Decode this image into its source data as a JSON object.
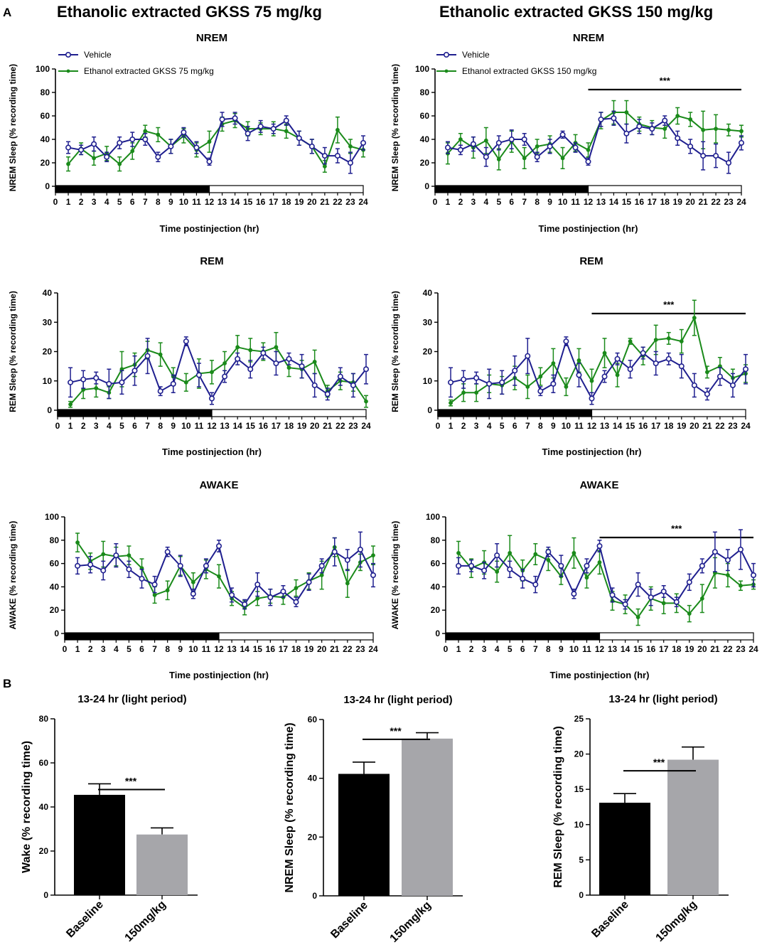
{
  "panel_labels": {
    "a": "A",
    "b": "B"
  },
  "column_titles": {
    "left": "Ethanolic extracted GKSS 75 mg/kg",
    "right": "Ethanolic extracted GKSS 150 mg/kg"
  },
  "colors": {
    "vehicle": "#1f1f8f",
    "treatment": "#1a8a1a",
    "baseline_bar": "#000000",
    "dose_bar": "#a6a6aa",
    "dark_period": "#000000",
    "light_period": "#ffffff"
  },
  "significance": "***",
  "chart_data": [
    {
      "id": "nrem_75",
      "type": "line",
      "title": "NREM",
      "xlabel": "Time postinjection (hr)",
      "ylabel": "NREM Sleep (% recording time)",
      "xlim": [
        0,
        24
      ],
      "ylim": [
        0,
        100
      ],
      "yticks": [
        0,
        20,
        40,
        60,
        80,
        100
      ],
      "x": [
        1,
        2,
        3,
        4,
        5,
        6,
        7,
        8,
        9,
        10,
        11,
        12,
        13,
        14,
        15,
        16,
        17,
        18,
        19,
        20,
        21,
        22,
        23,
        24
      ],
      "legend": [
        "Vehicle",
        "Ethanol extracted GKSS 75 mg/kg"
      ],
      "series": [
        {
          "name": "Vehicle",
          "values": [
            33,
            31,
            36,
            25,
            37,
            40,
            40,
            25,
            34,
            46,
            33,
            21,
            57,
            58,
            45,
            51,
            49,
            56,
            41,
            34,
            26,
            26,
            20,
            37
          ],
          "errors": [
            5,
            4,
            6,
            4,
            5,
            6,
            5,
            4,
            6,
            4,
            5,
            3,
            6,
            5,
            6,
            5,
            4,
            4,
            6,
            6,
            7,
            6,
            9,
            6
          ]
        },
        {
          "name": "Ethanol extracted GKSS 75 mg/kg",
          "values": [
            19,
            32,
            24,
            28,
            19,
            30,
            47,
            44,
            34,
            43,
            31,
            38,
            53,
            56,
            49,
            49,
            49,
            47,
            41,
            34,
            17,
            48,
            34,
            31
          ],
          "errors": [
            6,
            5,
            6,
            6,
            6,
            7,
            5,
            6,
            6,
            6,
            6,
            9,
            6,
            6,
            6,
            5,
            6,
            6,
            6,
            6,
            5,
            11,
            6,
            6
          ]
        }
      ],
      "bars": {
        "dark": [
          0,
          12
        ],
        "light": [
          12,
          24
        ]
      },
      "sig_range": null
    },
    {
      "id": "nrem_150",
      "type": "line",
      "title": "NREM",
      "xlabel": "Time postinjection (hr)",
      "ylabel": "NREM Sleep (% recording time)",
      "xlim": [
        0,
        24
      ],
      "ylim": [
        0,
        100
      ],
      "yticks": [
        0,
        20,
        40,
        60,
        80,
        100
      ],
      "x": [
        1,
        2,
        3,
        4,
        5,
        6,
        7,
        8,
        9,
        10,
        11,
        12,
        13,
        14,
        15,
        16,
        17,
        18,
        19,
        20,
        21,
        22,
        23,
        24
      ],
      "legend": [
        "Vehicle",
        "Ethanol extracted GKSS 150 mg/kg"
      ],
      "series": [
        {
          "name": "Vehicle",
          "values": [
            33,
            31,
            36,
            25,
            37,
            40,
            40,
            25,
            34,
            44,
            33,
            21,
            57,
            58,
            45,
            51,
            49,
            56,
            41,
            34,
            26,
            26,
            20,
            37
          ],
          "errors": [
            5,
            4,
            6,
            8,
            6,
            8,
            5,
            4,
            6,
            3,
            4,
            3,
            6,
            6,
            8,
            6,
            5,
            4,
            6,
            6,
            12,
            10,
            9,
            6
          ]
        },
        {
          "name": "Ethanol extracted GKSS 150 mg/kg",
          "values": [
            28,
            40,
            33,
            39,
            23,
            38,
            24,
            34,
            36,
            24,
            37,
            31,
            56,
            63,
            63,
            53,
            50,
            49,
            60,
            57,
            48,
            49,
            48,
            47
          ],
          "errors": [
            9,
            5,
            9,
            11,
            9,
            9,
            9,
            6,
            7,
            9,
            7,
            6,
            7,
            10,
            10,
            6,
            6,
            8,
            7,
            6,
            16,
            12,
            5,
            5
          ]
        }
      ],
      "bars": {
        "dark": [
          0,
          12
        ],
        "light": [
          12,
          24
        ]
      },
      "sig_range": [
        12,
        24
      ]
    },
    {
      "id": "rem_75",
      "type": "line",
      "title": "REM",
      "xlabel": "Time postinjection (hr)",
      "ylabel": "REM Sleep (% recording time)",
      "xlim": [
        0,
        24
      ],
      "ylim": [
        0,
        40
      ],
      "yticks": [
        0,
        10,
        20,
        30,
        40
      ],
      "x": [
        1,
        2,
        3,
        4,
        5,
        6,
        7,
        8,
        9,
        10,
        11,
        12,
        13,
        14,
        15,
        16,
        17,
        18,
        19,
        20,
        21,
        22,
        23,
        24
      ],
      "legend": null,
      "series": [
        {
          "name": "Vehicle",
          "values": [
            9.5,
            10.5,
            11,
            9,
            9.5,
            13.5,
            18.5,
            6.5,
            9,
            23.5,
            12,
            4,
            11.5,
            17.5,
            14,
            19.5,
            16,
            17.5,
            15,
            8.5,
            5.5,
            11.5,
            8.5,
            14
          ],
          "errors": [
            5,
            3,
            2,
            5,
            4,
            5,
            6,
            1.5,
            3,
            1.5,
            4,
            2,
            2,
            2,
            3,
            2,
            4,
            2,
            4,
            4,
            2,
            3,
            4,
            5
          ]
        },
        {
          "name": "Ethanol extracted GKSS 75 mg/kg",
          "values": [
            2,
            7,
            7.5,
            6,
            14,
            15.5,
            20.5,
            19,
            11.5,
            9.5,
            12.5,
            13,
            16,
            21.5,
            20.5,
            20,
            21.5,
            14.5,
            14,
            16.5,
            6.5,
            10,
            9.5,
            3
          ],
          "errors": [
            1,
            3,
            3,
            2,
            6,
            4,
            3,
            4,
            3,
            3,
            5,
            4,
            4,
            4,
            4,
            3,
            5,
            3,
            3,
            4,
            2,
            3,
            3,
            2
          ]
        }
      ],
      "bars": {
        "dark": [
          0,
          12
        ],
        "light": [
          12,
          24
        ]
      },
      "sig_range": null
    },
    {
      "id": "rem_150",
      "type": "line",
      "title": "REM",
      "xlabel": "Time postinjection (hr)",
      "ylabel": "REM Sleep (% recording time)",
      "xlim": [
        0,
        24
      ],
      "ylim": [
        0,
        40
      ],
      "yticks": [
        0,
        10,
        20,
        30,
        40
      ],
      "x": [
        1,
        2,
        3,
        4,
        5,
        6,
        7,
        8,
        9,
        10,
        11,
        12,
        13,
        14,
        15,
        16,
        17,
        18,
        19,
        20,
        21,
        22,
        23,
        24
      ],
      "legend": null,
      "series": [
        {
          "name": "Vehicle",
          "values": [
            9.5,
            10.5,
            11,
            9,
            9.5,
            13.5,
            18.5,
            6.5,
            9,
            23.5,
            12,
            4,
            11.5,
            17.5,
            14,
            19.5,
            16,
            17.5,
            15,
            8.5,
            5.5,
            11.5,
            8.5,
            14
          ],
          "errors": [
            5,
            3,
            2,
            5,
            4,
            5,
            6,
            1.5,
            3,
            1.5,
            4,
            2,
            2,
            2,
            3,
            2,
            4,
            2,
            4,
            4,
            2,
            3,
            4,
            5
          ]
        },
        {
          "name": "Ethanol extracted GKSS 150 mg/kg",
          "values": [
            2.5,
            6,
            6,
            9,
            8.5,
            11,
            8,
            11.5,
            16,
            8,
            17,
            10,
            19.5,
            12,
            23.5,
            18.5,
            24,
            24.5,
            23.5,
            31.5,
            13,
            15,
            11,
            12.5
          ],
          "errors": [
            1,
            3,
            3,
            3,
            3,
            4,
            4,
            3,
            5,
            3,
            4,
            4,
            5,
            4,
            1,
            3,
            5,
            2,
            4,
            6,
            2,
            3,
            3,
            3
          ]
        }
      ],
      "bars": {
        "dark": [
          0,
          12
        ],
        "light": [
          12,
          24
        ]
      },
      "sig_range": [
        12,
        24
      ]
    },
    {
      "id": "awake_75",
      "type": "line",
      "title": "AWAKE",
      "xlabel": "Time postinjection (hr)",
      "ylabel": "AWAKE (% recording time)",
      "xlim": [
        0,
        24
      ],
      "ylim": [
        0,
        100
      ],
      "yticks": [
        0,
        20,
        40,
        60,
        80,
        100
      ],
      "x": [
        1,
        2,
        3,
        4,
        5,
        6,
        7,
        8,
        9,
        10,
        11,
        12,
        13,
        14,
        15,
        16,
        17,
        18,
        19,
        20,
        21,
        22,
        23,
        24
      ],
      "legend": null,
      "series": [
        {
          "name": "Vehicle",
          "values": [
            58,
            59,
            54,
            67,
            55,
            47,
            42,
            70,
            58,
            34,
            58,
            75,
            33,
            25,
            42,
            31,
            36,
            27,
            44,
            58,
            70,
            63,
            72,
            50
          ],
          "errors": [
            7,
            7,
            8,
            10,
            7,
            8,
            7,
            4,
            9,
            4,
            6,
            5,
            6,
            4,
            10,
            7,
            5,
            4,
            7,
            6,
            12,
            9,
            15,
            10
          ]
        },
        {
          "name": "Ethanol extracted GKSS 75 mg/kg",
          "values": [
            78,
            62,
            68,
            66,
            67,
            56,
            33,
            37,
            58,
            44,
            55,
            49,
            30,
            22,
            30,
            32,
            31,
            39,
            45,
            50,
            74,
            43,
            61,
            67
          ],
          "errors": [
            8,
            7,
            11,
            8,
            8,
            8,
            7,
            8,
            8,
            8,
            8,
            10,
            6,
            6,
            6,
            6,
            6,
            7,
            7,
            12,
            8,
            12,
            7,
            8
          ]
        }
      ],
      "bars": {
        "dark": [
          0,
          12
        ],
        "light": [
          12,
          24
        ]
      },
      "sig_range": null
    },
    {
      "id": "awake_150",
      "type": "line",
      "title": "AWAKE",
      "xlabel": "Time postinjection (hr)",
      "ylabel": "AWAKE (% recording time)",
      "xlim": [
        0,
        24
      ],
      "ylim": [
        0,
        100
      ],
      "yticks": [
        0,
        20,
        40,
        60,
        80,
        100
      ],
      "x": [
        1,
        2,
        3,
        4,
        5,
        6,
        7,
        8,
        9,
        10,
        11,
        12,
        13,
        14,
        15,
        16,
        17,
        18,
        19,
        20,
        21,
        22,
        23,
        24
      ],
      "legend": null,
      "series": [
        {
          "name": "Vehicle",
          "values": [
            58,
            58,
            54,
            67,
            55,
            47,
            42,
            70,
            58,
            34,
            58,
            75,
            33,
            25,
            42,
            31,
            36,
            27,
            44,
            58,
            70,
            63,
            72,
            50
          ],
          "errors": [
            7,
            5,
            7,
            10,
            7,
            8,
            7,
            4,
            9,
            4,
            6,
            5,
            6,
            4,
            10,
            7,
            5,
            4,
            7,
            6,
            17,
            9,
            17,
            10
          ]
        },
        {
          "name": "Ethanol extracted GKSS 150 mg/kg",
          "values": [
            69,
            56,
            61,
            53,
            69,
            54,
            68,
            63,
            49,
            69,
            48,
            61,
            28,
            25,
            14,
            30,
            26,
            26,
            17,
            30,
            52,
            50,
            41,
            42
          ],
          "errors": [
            10,
            8,
            10,
            9,
            15,
            9,
            9,
            9,
            7,
            13,
            9,
            10,
            8,
            8,
            7,
            10,
            9,
            8,
            7,
            12,
            13,
            10,
            4,
            4
          ]
        }
      ],
      "bars": {
        "dark": [
          0,
          12
        ],
        "light": [
          12,
          24
        ]
      },
      "sig_range": [
        12,
        24
      ]
    },
    {
      "id": "bar_wake",
      "type": "bar",
      "title": "13-24 hr (light period)",
      "xlabel": "",
      "ylabel": "Wake (% recording time)",
      "ylim": [
        0,
        80
      ],
      "yticks": [
        0,
        20,
        40,
        60,
        80
      ],
      "categories": [
        "Baseline",
        "150mg/kg"
      ],
      "values": [
        45.5,
        27.5
      ],
      "errors": [
        5,
        3
      ]
    },
    {
      "id": "bar_nrem",
      "type": "bar",
      "title": "13-24 hr (light period)",
      "xlabel": "",
      "ylabel": "NREM Sleep (% recording time)",
      "ylim": [
        0,
        60
      ],
      "yticks": [
        0,
        20,
        40,
        60
      ],
      "categories": [
        "Baseline",
        "150mg/kg"
      ],
      "values": [
        41.5,
        53.5
      ],
      "errors": [
        4,
        2
      ]
    },
    {
      "id": "bar_rem",
      "type": "bar",
      "title": "13-24 hr (light period)",
      "xlabel": "",
      "ylabel": "REM Sleep (% recording time)",
      "ylim": [
        0,
        25
      ],
      "yticks": [
        0,
        5,
        10,
        15,
        20,
        25
      ],
      "categories": [
        "Baseline",
        "150mg/kg"
      ],
      "values": [
        13.1,
        19.2
      ],
      "errors": [
        1.3,
        1.8
      ]
    }
  ]
}
